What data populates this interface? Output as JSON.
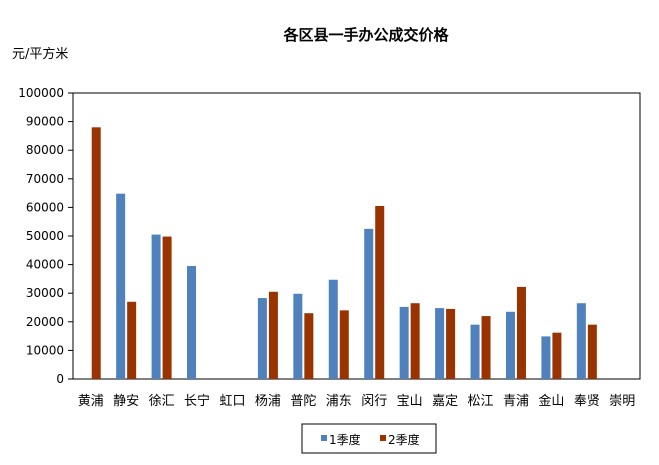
{
  "chart_data": {
    "type": "bar",
    "title": "各区县一手办公成交价格",
    "ylabel": "元/平方米",
    "xlabel": "",
    "ylim": [
      0,
      100000
    ],
    "yticks": [
      "0",
      "10000",
      "20000",
      "30000",
      "40000",
      "50000",
      "60000",
      "70000",
      "80000",
      "90000",
      "100000"
    ],
    "categories": [
      "黄浦",
      "静安",
      "徐汇",
      "长宁",
      "虹口",
      "杨浦",
      "普陀",
      "浦东",
      "闵行",
      "宝山",
      "嘉定",
      "松江",
      "青浦",
      "金山",
      "奉贤",
      "崇明"
    ],
    "series": [
      {
        "name": "1季度",
        "color": "#4F81BD",
        "values": [
          null,
          64800,
          50500,
          39500,
          null,
          28300,
          29800,
          34700,
          52500,
          25200,
          24800,
          19000,
          23500,
          14900,
          26500,
          null
        ]
      },
      {
        "name": "2季度",
        "color": "#993300",
        "values": [
          88000,
          27000,
          49800,
          null,
          null,
          30500,
          23000,
          24000,
          60500,
          26500,
          24500,
          22000,
          32200,
          16200,
          19000,
          null
        ]
      }
    ],
    "grid": false,
    "legend": "bottom"
  }
}
